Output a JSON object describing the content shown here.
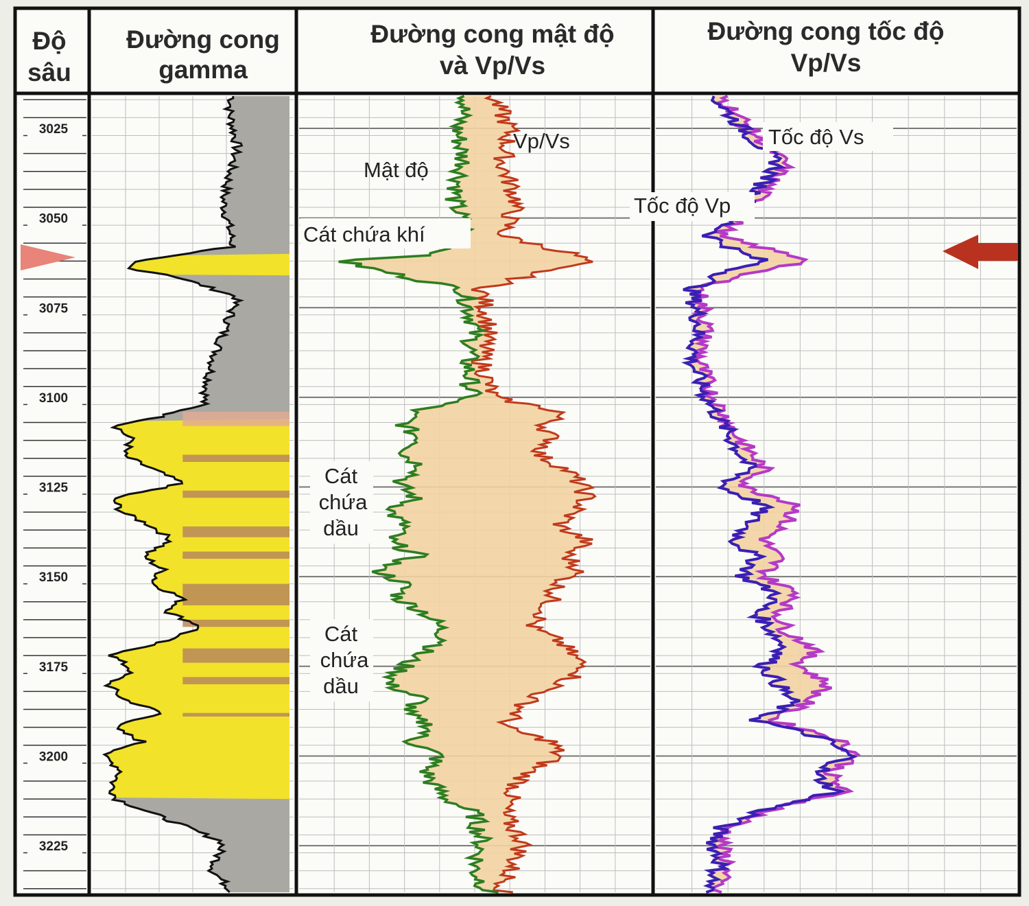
{
  "headers": {
    "depth": [
      "Độ",
      "sâu"
    ],
    "gamma": [
      "Đường cong",
      "gamma"
    ],
    "density": [
      "Đường cong mật độ",
      "và Vp/Vs"
    ],
    "velocity": [
      "Đường cong tốc độ",
      "Vp/Vs"
    ]
  },
  "annotations": {
    "vpvs": "Vp/Vs",
    "density": "Mật độ",
    "gas_sand": "Cát chứa khí",
    "oil_sand_1": [
      "Cát",
      "chứa",
      "dầu"
    ],
    "oil_sand_2": [
      "Cát",
      "chứa",
      "dầu"
    ],
    "vs": "Tốc độ Vs",
    "vp": "Tốc độ Vp"
  },
  "colors": {
    "gamma_curve": "#111111",
    "shale_fill": "#a9a8a3",
    "sand_fill": "#f2e22a",
    "sand_pale": "#f5ef9a",
    "shale_band": "#b9875c",
    "pink_band": "#e2aa94",
    "density_curve": "#2e7d20",
    "vpvs_curve": "#c0391b",
    "sand_tan": "#f2d3a2",
    "vs_curve": "#3b1fb3",
    "vp_curve": "#b43ac6",
    "marker": "#d4392a"
  },
  "chart_data": {
    "type": "line",
    "yaxis": {
      "label": "Độ sâu",
      "ticks": [
        3025,
        3050,
        3075,
        3100,
        3125,
        3150,
        3175,
        3200,
        3225
      ],
      "range": [
        3016,
        3238
      ]
    },
    "marker_depth": 3062,
    "tracks": [
      {
        "name": "Đường cong gamma",
        "series": [
          {
            "name": "gamma",
            "depths": [
              3016,
              3020,
              3030,
              3045,
              3058,
              3060,
              3062,
              3064,
              3066,
              3072,
              3090,
              3102,
              3106,
              3108,
              3112,
              3116,
              3120,
              3124,
              3128,
              3132,
              3136,
              3140,
              3144,
              3148,
              3152,
              3156,
              3160,
              3164,
              3168,
              3172,
              3176,
              3180,
              3184,
              3188,
              3192,
              3196,
              3200,
              3204,
              3208,
              3212,
              3216,
              3224,
              3232,
              3238
            ],
            "values": [
              0.7,
              0.68,
              0.72,
              0.65,
              0.7,
              0.45,
              0.2,
              0.18,
              0.4,
              0.72,
              0.6,
              0.55,
              0.3,
              0.12,
              0.2,
              0.15,
              0.3,
              0.45,
              0.1,
              0.15,
              0.3,
              0.4,
              0.25,
              0.35,
              0.3,
              0.45,
              0.38,
              0.55,
              0.35,
              0.1,
              0.2,
              0.08,
              0.15,
              0.35,
              0.1,
              0.25,
              0.05,
              0.15,
              0.1,
              0.12,
              0.3,
              0.65,
              0.6,
              0.7
            ]
          }
        ]
      },
      {
        "name": "Đường cong mật độ và Vp/Vs",
        "series": [
          {
            "name": "Mật độ",
            "depths": [
              3016,
              3025,
              3035,
              3045,
              3055,
              3060,
              3062,
              3064,
              3070,
              3080,
              3090,
              3100,
              3104,
              3108,
              3112,
              3116,
              3120,
              3124,
              3128,
              3132,
              3136,
              3140,
              3144,
              3148,
              3152,
              3156,
              3160,
              3164,
              3168,
              3172,
              3176,
              3180,
              3184,
              3188,
              3192,
              3196,
              3200,
              3204,
              3208,
              3212,
              3216,
              3224,
              3232,
              3238
            ],
            "values": [
              0.48,
              0.45,
              0.47,
              0.44,
              0.48,
              0.4,
              0.12,
              0.2,
              0.47,
              0.5,
              0.48,
              0.49,
              0.32,
              0.3,
              0.35,
              0.3,
              0.36,
              0.28,
              0.33,
              0.26,
              0.3,
              0.25,
              0.34,
              0.22,
              0.3,
              0.28,
              0.36,
              0.4,
              0.42,
              0.33,
              0.29,
              0.25,
              0.35,
              0.3,
              0.38,
              0.32,
              0.4,
              0.36,
              0.38,
              0.42,
              0.5,
              0.52,
              0.5,
              0.54
            ]
          },
          {
            "name": "Vp/Vs",
            "depths": [
              3016,
              3025,
              3035,
              3045,
              3055,
              3060,
              3062,
              3064,
              3070,
              3080,
              3090,
              3100,
              3104,
              3108,
              3112,
              3116,
              3120,
              3124,
              3128,
              3132,
              3136,
              3140,
              3144,
              3148,
              3152,
              3156,
              3160,
              3164,
              3168,
              3172,
              3176,
              3180,
              3184,
              3188,
              3192,
              3196,
              3200,
              3204,
              3208,
              3212,
              3216,
              3224,
              3232,
              3238
            ],
            "values": [
              0.55,
              0.6,
              0.58,
              0.62,
              0.58,
              0.78,
              0.82,
              0.72,
              0.52,
              0.54,
              0.52,
              0.55,
              0.75,
              0.7,
              0.72,
              0.68,
              0.76,
              0.8,
              0.82,
              0.78,
              0.74,
              0.82,
              0.76,
              0.8,
              0.74,
              0.72,
              0.7,
              0.66,
              0.74,
              0.78,
              0.82,
              0.74,
              0.66,
              0.62,
              0.58,
              0.72,
              0.74,
              0.66,
              0.62,
              0.6,
              0.58,
              0.64,
              0.6,
              0.58
            ]
          }
        ]
      },
      {
        "name": "Đường cong tốc độ Vp/Vs",
        "series": [
          {
            "name": "Tốc độ Vs",
            "depths": [
              3016,
              3025,
              3035,
              3045,
              3050,
              3055,
              3060,
              3062,
              3065,
              3070,
              3080,
              3090,
              3100,
              3110,
              3120,
              3125,
              3130,
              3135,
              3140,
              3145,
              3150,
              3155,
              3160,
              3165,
              3170,
              3175,
              3180,
              3185,
              3190,
              3195,
              3200,
              3205,
              3210,
              3215,
              3220,
              3225,
              3230,
              3238
            ],
            "values": [
              0.16,
              0.24,
              0.34,
              0.26,
              0.22,
              0.15,
              0.24,
              0.3,
              0.2,
              0.1,
              0.12,
              0.1,
              0.14,
              0.2,
              0.26,
              0.18,
              0.3,
              0.26,
              0.22,
              0.28,
              0.24,
              0.34,
              0.28,
              0.32,
              0.36,
              0.3,
              0.34,
              0.38,
              0.28,
              0.46,
              0.54,
              0.44,
              0.5,
              0.3,
              0.18,
              0.16,
              0.18,
              0.14
            ]
          },
          {
            "name": "Tốc độ Vp",
            "depths": [
              3016,
              3025,
              3035,
              3045,
              3050,
              3055,
              3060,
              3062,
              3065,
              3070,
              3080,
              3090,
              3100,
              3110,
              3120,
              3125,
              3130,
              3135,
              3140,
              3145,
              3150,
              3155,
              3160,
              3165,
              3170,
              3175,
              3180,
              3185,
              3190,
              3195,
              3200,
              3205,
              3210,
              3215,
              3220,
              3225,
              3230,
              3238
            ],
            "values": [
              0.18,
              0.26,
              0.36,
              0.28,
              0.24,
              0.17,
              0.36,
              0.44,
              0.26,
              0.12,
              0.14,
              0.12,
              0.16,
              0.22,
              0.3,
              0.24,
              0.4,
              0.36,
              0.3,
              0.34,
              0.3,
              0.4,
              0.34,
              0.36,
              0.44,
              0.4,
              0.48,
              0.42,
              0.32,
              0.5,
              0.56,
              0.48,
              0.52,
              0.32,
              0.2,
              0.18,
              0.2,
              0.16
            ]
          }
        ]
      }
    ]
  }
}
